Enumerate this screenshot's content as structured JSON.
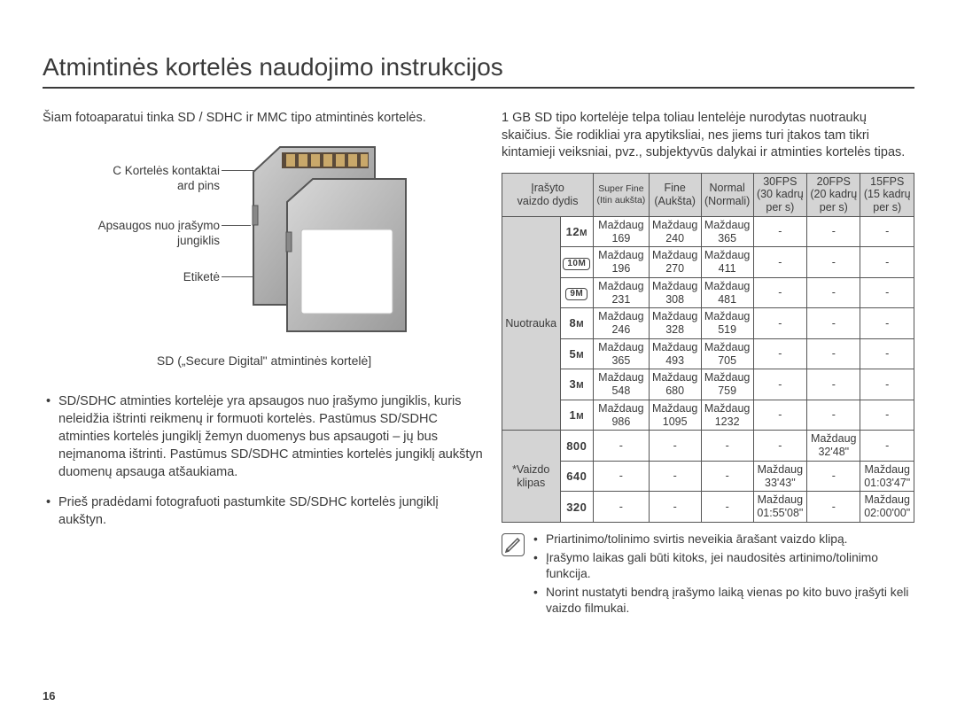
{
  "title": "Atmintinės kortelės naudojimo instrukcijos",
  "pageNumber": "16",
  "left": {
    "intro": "Šiam fotoaparatui tinka SD / SDHC ir MMC tipo atmintinės kortelės.",
    "labels": {
      "contacts1": "C Kortelės kontaktai",
      "contacts2": "ard pins",
      "switch1": "Apsaugos nuo įrašymo",
      "switch2": "jungiklis",
      "label": "Etiketė"
    },
    "caption": "SD („Secure Digital\" atmintinės kortelė]",
    "bullets": [
      "SD/SDHC atminties kortelėje yra apsaugos nuo įrašymo jungiklis, kuris neleidžia ištrinti reikmenų ir formuoti kortelės. Pastūmus SD/SDHC atminties kortelės jungiklį žemyn duomenys bus apsaugoti – jų bus neįmanoma ištrinti. Pastūmus SD/SDHC atminties kortelės jungiklį aukštyn duomenų apsauga atšaukiama.",
      "Prieš pradėdami fotografuoti pastumkite SD/SDHC kortelės jungiklį aukštyn."
    ]
  },
  "right": {
    "intro": "1 GB SD tipo kortelėje telpa toliau lentelėje nurodytas nuotraukų skaičius. Šie rodikliai yra apytiksliai, nes jiems turi įtakos tam tikri kintamieji veiksniai, pvz., subjektyvūs dalykai ir atminties kortelės tipas.",
    "headers": {
      "h0a": "Įrašyto",
      "h0b": "vaizdo dydis",
      "h1a": "Super Fine",
      "h1b": "(Itin aukšta)",
      "h2a": "Fine",
      "h2b": "(Aukšta)",
      "h3a": "Normal",
      "h3b": "(Normali)",
      "h4a": "30FPS",
      "h4b": "(30 kadrų",
      "h4c": "per s)",
      "h5a": "20FPS",
      "h5b": "(20 kadrų",
      "h5c": "per s)",
      "h6a": "15FPS",
      "h6b": "(15 kadrų",
      "h6c": "per s)"
    },
    "groupPhoto": "Nuotrauka",
    "groupVideo": "*Vaizdo klipas",
    "approx": "Maždaug",
    "photoRows": [
      {
        "size": "12",
        "sf": "169",
        "f": "240",
        "n": "365"
      },
      {
        "size": "10",
        "boxed": true,
        "sf": "196",
        "f": "270",
        "n": "411"
      },
      {
        "size": "9",
        "boxed": true,
        "sf": "231",
        "f": "308",
        "n": "481"
      },
      {
        "size": "8",
        "sf": "246",
        "f": "328",
        "n": "519"
      },
      {
        "size": "5",
        "sf": "365",
        "f": "493",
        "n": "705"
      },
      {
        "size": "3",
        "sf": "548",
        "f": "680",
        "n": "759"
      },
      {
        "size": "1",
        "sf": "986",
        "f": "1095",
        "n": "1232"
      }
    ],
    "videoRows": [
      {
        "size": "800",
        "fps30": "-",
        "fps20": "32'48\"",
        "fps15": "-"
      },
      {
        "size": "640",
        "fps30": "33'43\"",
        "fps20": "-",
        "fps15": "01:03'47\""
      },
      {
        "size": "320",
        "fps30": "01:55'08\"",
        "fps20": "-",
        "fps15": "02:00'00\""
      }
    ],
    "notes": [
      "Priartinimo/tolinimo svirtis neveikia ārašant vaizdo klipą.",
      "Įrašymo laikas gali būti kitoks, jei naudositės artinimo/tolinimo funkcija.",
      "Norint nustatyti bendrą įrašymo laiką vienas po kito buvo įrašyti keli vaizdo filmukai."
    ]
  },
  "colors": {
    "text": "#3a3a3a",
    "border": "#555555",
    "headerBg": "#d4d4d4",
    "bg": "#ffffff"
  }
}
